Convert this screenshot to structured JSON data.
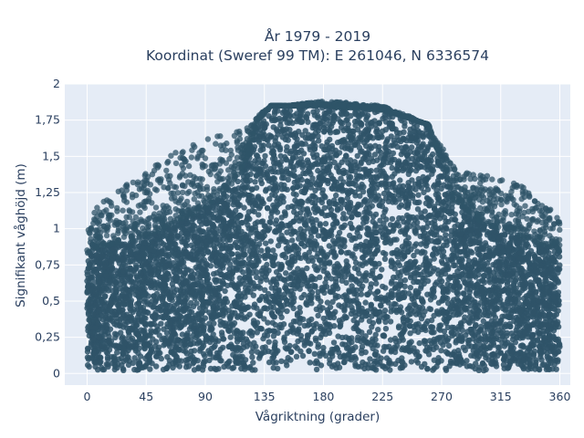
{
  "chart_data": {
    "type": "scatter",
    "title_lines": [
      "År 1979 - 2019",
      "Koordinat (Sweref 99 TM): E 261046, N 6336574"
    ],
    "xlabel": "Vågriktning (grader)",
    "ylabel": "Signifikant våghöjd (m)",
    "xlim": [
      -17,
      368
    ],
    "ylim": [
      -0.08,
      2.0
    ],
    "xticks": [
      0,
      45,
      90,
      135,
      180,
      225,
      270,
      315,
      360
    ],
    "xtick_labels": [
      "0",
      "45",
      "90",
      "135",
      "180",
      "225",
      "270",
      "315",
      "360"
    ],
    "yticks": [
      0,
      0.25,
      0.5,
      0.75,
      1,
      1.25,
      1.5,
      1.75,
      2
    ],
    "ytick_labels": [
      "0",
      "0,25",
      "0,5",
      "0,75",
      "1",
      "1,25",
      "1,5",
      "1,75",
      "2"
    ],
    "grid": true,
    "legend": "none",
    "colors": {
      "marker": "#2f5468",
      "plot_background": "#e5ecf6",
      "grid": "#ffffff",
      "text": "#2a3f5f"
    },
    "x_range": [
      0,
      360
    ],
    "envelope": {
      "x": [
        0,
        20,
        45,
        70,
        90,
        100,
        110,
        120,
        135,
        160,
        180,
        200,
        225,
        250,
        265,
        280,
        300,
        315,
        330,
        350,
        360
      ],
      "max_height": [
        1.1,
        1.25,
        1.4,
        1.55,
        1.62,
        1.65,
        1.66,
        1.68,
        1.82,
        1.86,
        1.88,
        1.87,
        1.85,
        1.76,
        1.62,
        1.45,
        1.38,
        1.35,
        1.3,
        1.18,
        1.05
      ]
    },
    "dense_core": {
      "x": [
        0,
        45,
        90,
        110,
        120,
        130,
        140,
        180,
        225,
        260,
        270,
        280,
        300,
        315,
        340,
        360
      ],
      "max_height": [
        0.85,
        0.95,
        1.15,
        1.3,
        1.45,
        1.75,
        1.85,
        1.85,
        1.82,
        1.72,
        1.45,
        1.2,
        1.05,
        1.0,
        0.92,
        0.85
      ]
    },
    "min_height": 0.02
  }
}
